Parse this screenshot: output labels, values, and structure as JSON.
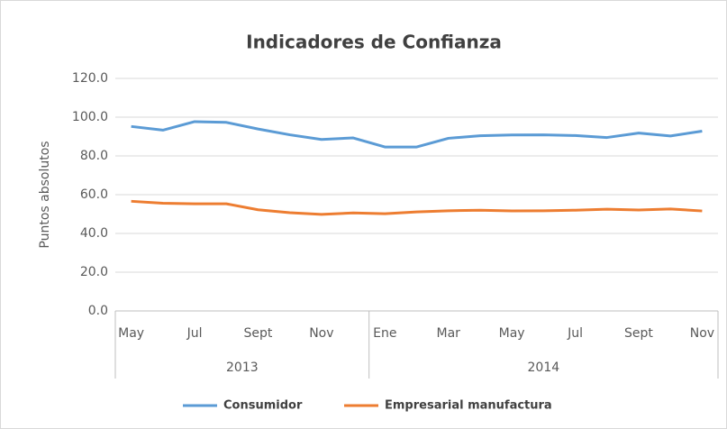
{
  "chart_data": {
    "type": "line",
    "title": "Indicadores de Confianza",
    "y_label": "Puntos absolutos",
    "categories": [
      "May",
      null,
      "Jul",
      null,
      "Sept",
      null,
      "Nov",
      null,
      "Ene",
      null,
      "Mar",
      null,
      "May",
      null,
      "Jul",
      null,
      "Sept",
      null,
      "Nov"
    ],
    "groups": [
      {
        "label": "2013",
        "span": 8
      },
      {
        "label": "2014",
        "span": 11
      }
    ],
    "series": [
      {
        "name": "Consumidor",
        "color": "#5b9bd5",
        "values": [
          95.2,
          93.3,
          97.7,
          97.3,
          93.9,
          90.9,
          88.5,
          89.3,
          84.6,
          84.6,
          89.1,
          90.4,
          90.8,
          90.9,
          90.5,
          89.5,
          91.8,
          90.3,
          92.8
        ]
      },
      {
        "name": "Empresarial manufactura",
        "color": "#ed7d31",
        "values": [
          56.6,
          55.6,
          55.3,
          55.3,
          52.2,
          50.7,
          49.8,
          50.6,
          50.2,
          51.1,
          51.7,
          52.0,
          51.6,
          51.7,
          52.0,
          52.5,
          52.1,
          52.6,
          51.6
        ]
      }
    ],
    "ylim": [
      0,
      120
    ],
    "yticks": [
      {
        "value": 0,
        "label": "0.0"
      },
      {
        "value": 20,
        "label": "20.0"
      },
      {
        "value": 40,
        "label": "40.0"
      },
      {
        "value": 60,
        "label": "60.0"
      },
      {
        "value": 80,
        "label": "80.0"
      },
      {
        "value": 100,
        "label": "100.0"
      },
      {
        "value": 120,
        "label": "120.0"
      }
    ],
    "grid": true,
    "legend": "bottom"
  }
}
